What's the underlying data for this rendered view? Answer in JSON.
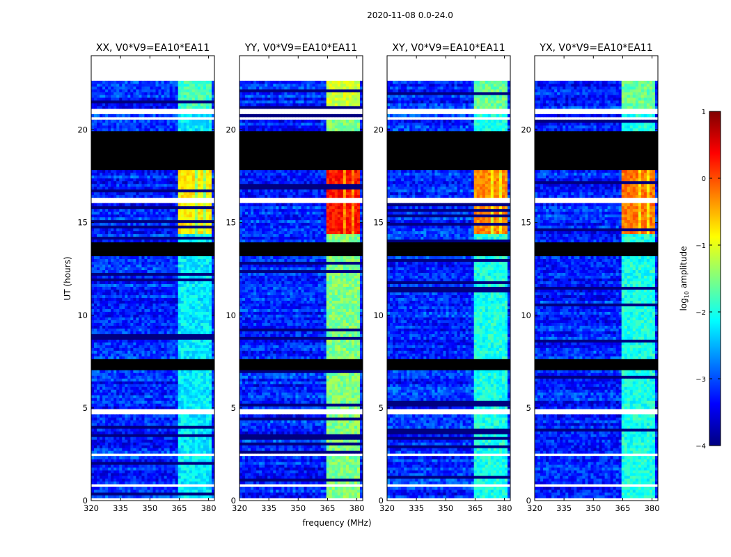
{
  "figure": {
    "suptitle": "2020-11-08 0.0-24.0",
    "xlabel": "frequency (MHz)",
    "ylabel": "UT (hours)"
  },
  "colorbar": {
    "label_prefix": "log",
    "label_sub": "10",
    "label_suffix": " amplitude",
    "ticks": [
      1,
      0,
      -1,
      -2,
      -3,
      -4
    ],
    "tick_labels": [
      "1",
      "0",
      "−1",
      "−2",
      "−3",
      "−4"
    ],
    "range": [
      -4,
      1
    ],
    "stops": [
      "#000080",
      "#0000ff",
      "#0080ff",
      "#00ffff",
      "#80ff80",
      "#ffff00",
      "#ff8000",
      "#ff0000",
      "#800000"
    ]
  },
  "chart_data": {
    "type": "heatmap",
    "x_ticks": [
      320,
      335,
      350,
      365,
      380
    ],
    "x_tick_labels": [
      "320",
      "335",
      "350",
      "365",
      "380"
    ],
    "xlim": [
      320,
      383
    ],
    "y_ticks": [
      0,
      5,
      10,
      15,
      20
    ],
    "y_tick_labels": [
      "0",
      "5",
      "10",
      "15",
      "20"
    ],
    "ylim": [
      0,
      24
    ],
    "panels": [
      {
        "title": "XX, V0*V9=EA10*EA11",
        "band_level": -2.2,
        "rfi_level": -0.8
      },
      {
        "title": "YY, V0*V9=EA10*EA11",
        "band_level": -1.5,
        "rfi_level": 0.3
      },
      {
        "title": "XY, V0*V9=EA10*EA11",
        "band_level": -2.0,
        "rfi_level": -0.3
      },
      {
        "title": "YX, V0*V9=EA10*EA11",
        "band_level": -2.0,
        "rfi_level": -0.2
      }
    ],
    "no_data_ranges_ut": [
      [
        22.6,
        24.0
      ],
      [
        20.55,
        20.75
      ],
      [
        20.85,
        21.1
      ],
      [
        16.1,
        16.3
      ],
      [
        4.6,
        4.9
      ],
      [
        2.4,
        2.6
      ],
      [
        0.7,
        0.95
      ],
      [
        0.0,
        0.1
      ]
    ],
    "flagged_ranges_ut": [
      [
        17.85,
        20.0
      ],
      [
        13.2,
        14.0
      ],
      [
        7.0,
        7.6
      ]
    ],
    "background_level": -3.2,
    "bright_band_mhz": [
      364,
      381
    ],
    "rfi_channels_mhz": [
      [
        364,
        368
      ],
      [
        369,
        373
      ],
      [
        374,
        377
      ],
      [
        378,
        381
      ]
    ]
  }
}
